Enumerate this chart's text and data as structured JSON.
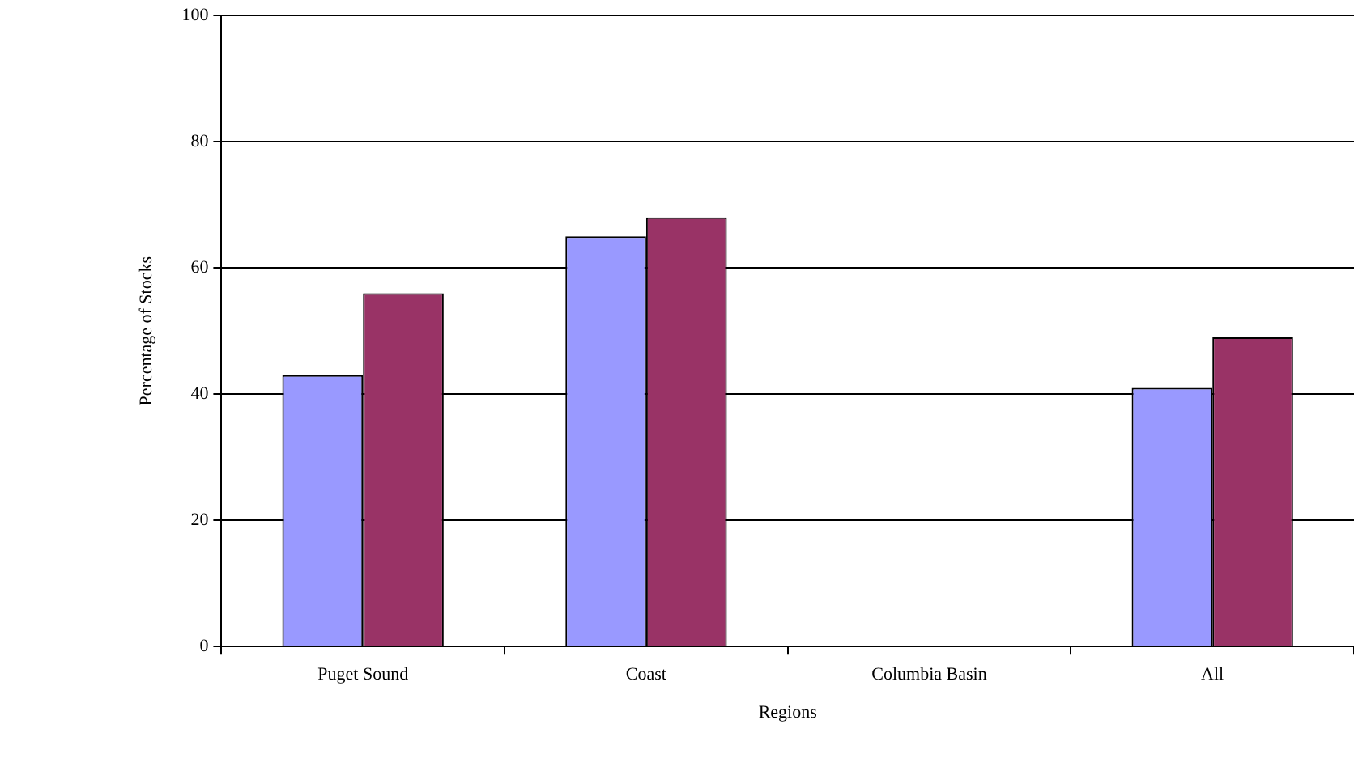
{
  "chart_data": {
    "type": "bar",
    "xlabel": "Regions",
    "ylabel": "Percentage of Stocks",
    "categories": [
      "Puget Sound",
      "Coast",
      "Columbia Basin",
      "All"
    ],
    "series": [
      {
        "color": "#9999ff",
        "values": [
          43,
          65,
          null,
          41
        ]
      },
      {
        "color": "#993366",
        "values": [
          56,
          68,
          null,
          49
        ]
      }
    ],
    "ylim": [
      0,
      100
    ],
    "yticks": [
      0,
      20,
      40,
      60,
      80,
      100
    ],
    "grid": "y",
    "legend": false
  }
}
